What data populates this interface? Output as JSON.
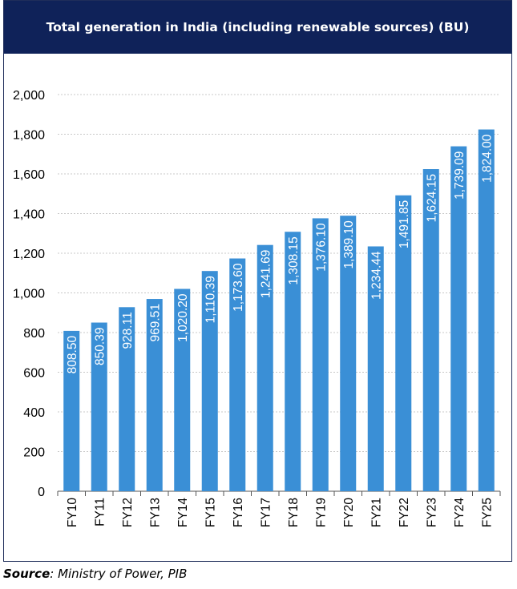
{
  "title": "Total generation in India (including renewable sources) (BU)",
  "source_label": "Source",
  "source_text": ": Ministry of Power, PIB",
  "colors": {
    "bar": "#3a8fd6",
    "header": "#0f2259",
    "grid": "#c8c8c8"
  },
  "chart_data": {
    "type": "bar",
    "title": "Total generation in India (including renewable sources) (BU)",
    "xlabel": "",
    "ylabel": "",
    "ylim": [
      0,
      2000
    ],
    "yticks": [
      0,
      200,
      400,
      600,
      800,
      1000,
      1200,
      1400,
      1600,
      1800,
      2000
    ],
    "ytick_labels": [
      "0",
      "200",
      "400",
      "600",
      "800",
      "1,000",
      "1,200",
      "1,400",
      "1,600",
      "1,800",
      "2,000"
    ],
    "grid": true,
    "categories": [
      "FY10",
      "FY11",
      "FY12",
      "FY13",
      "FY14",
      "FY15",
      "FY16",
      "FY17",
      "FY18",
      "FY19",
      "FY20",
      "FY21",
      "FY22",
      "FY23",
      "FY24",
      "FY25"
    ],
    "values": [
      808.5,
      850.39,
      928.11,
      969.51,
      1020.2,
      1110.39,
      1173.6,
      1241.69,
      1308.15,
      1376.1,
      1389.1,
      1234.44,
      1491.85,
      1624.15,
      1739.09,
      1824.0
    ],
    "data_labels": [
      "808.50",
      "850.39",
      "928.11",
      "969.51",
      "1,020.20",
      "1,110.39",
      "1,173.60",
      "1,241.69",
      "1,308.15",
      "1,376.10",
      "1,389.10",
      "1,234.44",
      "1,491.85",
      "1,624.15",
      "1,739.09",
      "1,824.00"
    ]
  }
}
